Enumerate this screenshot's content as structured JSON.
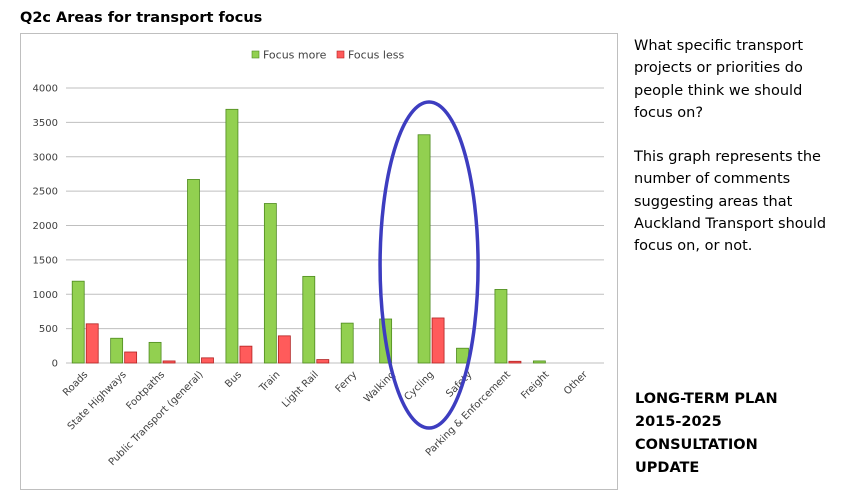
{
  "page": {
    "title": "Q2c Areas for transport focus",
    "question": "What specific transport projects or priorities do people think we should focus on?",
    "description": "This graph represents the number of comments suggesting areas that Auckland Transport should focus on, or not.",
    "update_lines": [
      "LONG-TERM PLAN",
      "2015-2025",
      "CONSULTATION",
      "UPDATE"
    ]
  },
  "colors": {
    "focus_more": "#92d050",
    "focus_more_stroke": "#4e8a1f",
    "focus_less": "#ff5b5b",
    "focus_less_stroke": "#b22222",
    "gridline": "#bfbfbf",
    "highlight_ellipse": "#3d3dc0"
  },
  "chart_data": {
    "type": "bar",
    "categories": [
      "Roads",
      "State Highways",
      "Footpaths",
      "Public Transport (general)",
      "Bus",
      "Train",
      "Light Rail",
      "Ferry",
      "Walking",
      "Cycling",
      "Safety",
      "Parking & Enforcement",
      "Freight",
      "Other"
    ],
    "series": [
      {
        "name": "Focus more",
        "values": [
          1190,
          360,
          300,
          2670,
          3690,
          2320,
          1260,
          580,
          640,
          3320,
          215,
          1070,
          30,
          0
        ]
      },
      {
        "name": "Focus less",
        "values": [
          570,
          160,
          30,
          75,
          245,
          395,
          50,
          0,
          0,
          655,
          0,
          25,
          0,
          0
        ]
      }
    ],
    "yticks": [
      0,
      500,
      1000,
      1500,
      2000,
      2500,
      3000,
      3500,
      4000
    ],
    "ylim": [
      0,
      4000
    ],
    "grid": true,
    "legend_position": "top",
    "highlighted_category": "Cycling"
  }
}
